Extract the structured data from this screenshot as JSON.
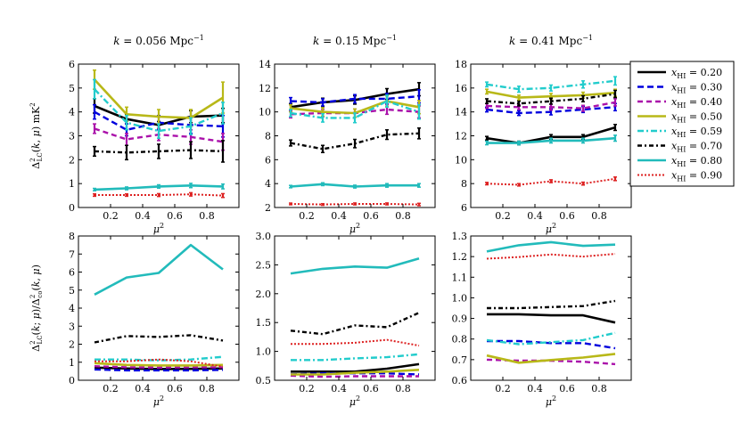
{
  "colors": {
    "0.20": "#000000",
    "0.30": "#0000dd",
    "0.40": "#aa11aa",
    "0.50": "#b8b818",
    "0.59": "#22cccc",
    "0.70": "#000000",
    "0.80": "#22bbbb",
    "0.90": "#dd2222"
  },
  "legend": {
    "placement": "top-right",
    "entries": [
      {
        "key": "0.20",
        "label": "x_HI = 0.20",
        "var": "x",
        "sub": "HI",
        "eq": " = 0.20"
      },
      {
        "key": "0.30",
        "label": "x_HI = 0.30",
        "var": "x",
        "sub": "HI",
        "eq": " = 0.30"
      },
      {
        "key": "0.40",
        "label": "x_HI = 0.40",
        "var": "x",
        "sub": "HI",
        "eq": " = 0.40"
      },
      {
        "key": "0.50",
        "label": "x_HI = 0.50",
        "var": "x",
        "sub": "HI",
        "eq": " = 0.50"
      },
      {
        "key": "0.59",
        "label": "x_HI = 0.59",
        "var": "x",
        "sub": "HI",
        "eq": " = 0.59"
      },
      {
        "key": "0.70",
        "label": "x_HI = 0.70",
        "var": "x",
        "sub": "HI",
        "eq": " = 0.70"
      },
      {
        "key": "0.80",
        "label": "x_HI = 0.80",
        "var": "x",
        "sub": "HI",
        "eq": " = 0.80"
      },
      {
        "key": "0.90",
        "label": "x_HI = 0.90",
        "var": "x",
        "sub": "HI",
        "eq": " = 0.90"
      }
    ]
  },
  "chart_data": [
    {
      "type": "line",
      "title": "k = 0.056 Mpc^-1",
      "title_parts": {
        "k": "k",
        "eq": " = 0.056 Mpc",
        "sup": "−1"
      },
      "xlabel": "μ^2",
      "ylabel": "Δ^2_LC(k,μ) mK^2",
      "xlim": [
        0.0,
        1.0
      ],
      "ylim": [
        0,
        6
      ],
      "xticks": [
        0.2,
        0.4,
        0.6,
        0.8
      ],
      "yticks": [
        0,
        1,
        2,
        3,
        4,
        5,
        6
      ],
      "ytick_labels": [
        "0",
        "1",
        "2",
        "3",
        "4",
        "5",
        "6"
      ],
      "errorbars": true,
      "x": [
        0.1,
        0.3,
        0.5,
        0.7,
        0.9
      ],
      "series": [
        {
          "key": "0.20",
          "values": [
            4.25,
            3.7,
            3.45,
            3.8,
            3.85
          ],
          "err": [
            0.3,
            0.2,
            0.15,
            0.25,
            0.3
          ]
        },
        {
          "key": "0.30",
          "values": [
            4.0,
            3.25,
            3.55,
            3.45,
            3.4
          ],
          "err": [
            0.3,
            0.25,
            0.3,
            0.35,
            0.45
          ]
        },
        {
          "key": "0.40",
          "values": [
            3.3,
            2.85,
            3.05,
            2.95,
            2.75
          ],
          "err": [
            0.2,
            0.25,
            0.25,
            0.3,
            0.35
          ]
        },
        {
          "key": "0.50",
          "values": [
            5.35,
            3.9,
            3.8,
            3.75,
            4.6
          ],
          "err": [
            0.4,
            0.3,
            0.3,
            0.35,
            0.65
          ]
        },
        {
          "key": "0.59",
          "values": [
            4.95,
            3.55,
            3.2,
            3.4,
            3.95
          ],
          "err": [
            0.4,
            0.3,
            0.3,
            0.35,
            0.45
          ]
        },
        {
          "key": "0.70",
          "values": [
            2.35,
            2.3,
            2.35,
            2.4,
            2.35
          ],
          "err": [
            0.2,
            0.3,
            0.3,
            0.35,
            0.45
          ]
        },
        {
          "key": "0.80",
          "values": [
            0.75,
            0.8,
            0.88,
            0.92,
            0.88
          ],
          "err": [
            0.05,
            0.06,
            0.07,
            0.09,
            0.1
          ]
        },
        {
          "key": "0.90",
          "values": [
            0.52,
            0.52,
            0.52,
            0.55,
            0.5
          ],
          "err": [
            0.05,
            0.05,
            0.06,
            0.07,
            0.08
          ]
        }
      ]
    },
    {
      "type": "line",
      "title": "k = 0.15 Mpc^-1",
      "title_parts": {
        "k": "k",
        "eq": " = 0.15 Mpc",
        "sup": "−1"
      },
      "xlabel": "μ^2",
      "ylabel": "",
      "xlim": [
        0.0,
        1.0
      ],
      "ylim": [
        2,
        14
      ],
      "xticks": [
        0.2,
        0.4,
        0.6,
        0.8
      ],
      "yticks": [
        2,
        4,
        6,
        8,
        10,
        12,
        14
      ],
      "ytick_labels": [
        "2",
        "4",
        "6",
        "8",
        "10",
        "12",
        "14"
      ],
      "errorbars": true,
      "x": [
        0.1,
        0.3,
        0.5,
        0.7,
        0.9
      ],
      "series": [
        {
          "key": "0.20",
          "values": [
            10.4,
            10.8,
            11.0,
            11.5,
            11.9
          ],
          "err": [
            0.3,
            0.35,
            0.35,
            0.45,
            0.55
          ]
        },
        {
          "key": "0.30",
          "values": [
            10.9,
            10.8,
            11.1,
            11.1,
            11.3
          ],
          "err": [
            0.3,
            0.3,
            0.35,
            0.45,
            0.55
          ]
        },
        {
          "key": "0.40",
          "values": [
            9.8,
            9.9,
            9.9,
            10.2,
            10.0
          ],
          "err": [
            0.3,
            0.3,
            0.35,
            0.4,
            0.5
          ]
        },
        {
          "key": "0.50",
          "values": [
            10.3,
            10.0,
            9.9,
            10.9,
            10.4
          ],
          "err": [
            0.3,
            0.35,
            0.35,
            0.45,
            0.55
          ]
        },
        {
          "key": "0.59",
          "values": [
            9.9,
            9.5,
            9.5,
            10.9,
            10.0
          ],
          "err": [
            0.3,
            0.35,
            0.4,
            0.5,
            0.6
          ]
        },
        {
          "key": "0.70",
          "values": [
            7.4,
            6.9,
            7.35,
            8.1,
            8.2
          ],
          "err": [
            0.25,
            0.3,
            0.35,
            0.4,
            0.45
          ]
        },
        {
          "key": "0.80",
          "values": [
            3.75,
            3.95,
            3.75,
            3.85,
            3.85
          ],
          "err": [
            0.1,
            0.12,
            0.12,
            0.15,
            0.15
          ]
        },
        {
          "key": "0.90",
          "values": [
            2.3,
            2.25,
            2.3,
            2.3,
            2.25
          ],
          "err": [
            0.07,
            0.07,
            0.08,
            0.08,
            0.1
          ]
        }
      ]
    },
    {
      "type": "line",
      "title": "k = 0.41 Mpc^-1",
      "title_parts": {
        "k": "k",
        "eq": " = 0.41 Mpc",
        "sup": "−1"
      },
      "xlabel": "μ^2",
      "ylabel": "",
      "xlim": [
        0.0,
        1.0
      ],
      "ylim": [
        6,
        18
      ],
      "xticks": [
        0.2,
        0.4,
        0.6,
        0.8
      ],
      "yticks": [
        6,
        8,
        10,
        12,
        14,
        16,
        18
      ],
      "ytick_labels": [
        "6",
        "8",
        "10",
        "12",
        "14",
        "16",
        "18"
      ],
      "errorbars": true,
      "x": [
        0.1,
        0.3,
        0.5,
        0.7,
        0.9
      ],
      "series": [
        {
          "key": "0.20",
          "values": [
            11.8,
            11.4,
            11.9,
            11.9,
            12.7
          ],
          "err": [
            0.15,
            0.15,
            0.2,
            0.2,
            0.25
          ]
        },
        {
          "key": "0.30",
          "values": [
            14.2,
            13.9,
            14.0,
            14.2,
            14.4
          ],
          "err": [
            0.2,
            0.2,
            0.25,
            0.25,
            0.3
          ]
        },
        {
          "key": "0.40",
          "values": [
            14.5,
            14.4,
            14.4,
            14.3,
            14.8
          ],
          "err": [
            0.2,
            0.2,
            0.25,
            0.25,
            0.3
          ]
        },
        {
          "key": "0.50",
          "values": [
            15.7,
            15.2,
            15.3,
            15.4,
            15.6
          ],
          "err": [
            0.2,
            0.2,
            0.25,
            0.25,
            0.3
          ]
        },
        {
          "key": "0.59",
          "values": [
            16.3,
            15.9,
            16.0,
            16.3,
            16.6
          ],
          "err": [
            0.2,
            0.25,
            0.25,
            0.3,
            0.35
          ]
        },
        {
          "key": "0.70",
          "values": [
            14.9,
            14.7,
            14.9,
            15.1,
            15.5
          ],
          "err": [
            0.2,
            0.2,
            0.25,
            0.25,
            0.3
          ]
        },
        {
          "key": "0.80",
          "values": [
            11.4,
            11.4,
            11.6,
            11.6,
            11.8
          ],
          "err": [
            0.15,
            0.15,
            0.2,
            0.2,
            0.25
          ]
        },
        {
          "key": "0.90",
          "values": [
            8.0,
            7.9,
            8.2,
            8.0,
            8.4
          ],
          "err": [
            0.1,
            0.1,
            0.12,
            0.12,
            0.15
          ]
        }
      ]
    },
    {
      "type": "line",
      "title": "",
      "xlabel": "μ^2",
      "ylabel": "Δ^2_LC(k,μ)/Δ^2_co(k,μ)",
      "xlim": [
        0.0,
        1.0
      ],
      "ylim": [
        0,
        8
      ],
      "xticks": [
        0.2,
        0.4,
        0.6,
        0.8
      ],
      "yticks": [
        0,
        1,
        2,
        3,
        4,
        5,
        6,
        7,
        8
      ],
      "ytick_labels": [
        "0",
        "1",
        "2",
        "3",
        "4",
        "5",
        "6",
        "7",
        "8"
      ],
      "errorbars": false,
      "x": [
        0.1,
        0.3,
        0.5,
        0.7,
        0.9
      ],
      "series": [
        {
          "key": "0.20",
          "values": [
            0.7,
            0.65,
            0.62,
            0.63,
            0.65
          ]
        },
        {
          "key": "0.30",
          "values": [
            0.6,
            0.55,
            0.55,
            0.55,
            0.58
          ]
        },
        {
          "key": "0.40",
          "values": [
            0.78,
            0.72,
            0.7,
            0.72,
            0.72
          ]
        },
        {
          "key": "0.50",
          "values": [
            0.95,
            0.85,
            0.82,
            0.82,
            0.85
          ]
        },
        {
          "key": "0.59",
          "values": [
            1.15,
            1.15,
            1.1,
            1.15,
            1.3
          ]
        },
        {
          "key": "0.70",
          "values": [
            2.1,
            2.45,
            2.4,
            2.5,
            2.2
          ]
        },
        {
          "key": "0.80",
          "values": [
            4.75,
            5.7,
            5.95,
            7.5,
            6.15
          ]
        },
        {
          "key": "0.90",
          "values": [
            1.05,
            1.05,
            1.15,
            1.05,
            0.75
          ]
        }
      ]
    },
    {
      "type": "line",
      "title": "",
      "xlabel": "μ^2",
      "ylabel": "",
      "xlim": [
        0.0,
        1.0
      ],
      "ylim": [
        0.5,
        3.0
      ],
      "xticks": [
        0.2,
        0.4,
        0.6,
        0.8
      ],
      "yticks": [
        0.5,
        1.0,
        1.5,
        2.0,
        2.5,
        3.0
      ],
      "ytick_labels": [
        "0.5",
        "1.0",
        "1.5",
        "2.0",
        "2.5",
        "3.0"
      ],
      "errorbars": false,
      "x": [
        0.1,
        0.3,
        0.5,
        0.7,
        0.9
      ],
      "series": [
        {
          "key": "0.20",
          "values": [
            0.65,
            0.65,
            0.65,
            0.7,
            0.78
          ]
        },
        {
          "key": "0.30",
          "values": [
            0.6,
            0.62,
            0.62,
            0.62,
            0.6
          ]
        },
        {
          "key": "0.40",
          "values": [
            0.58,
            0.56,
            0.57,
            0.57,
            0.57
          ]
        },
        {
          "key": "0.50",
          "values": [
            0.6,
            0.6,
            0.63,
            0.65,
            0.68
          ]
        },
        {
          "key": "0.59",
          "values": [
            0.85,
            0.85,
            0.88,
            0.9,
            0.95
          ]
        },
        {
          "key": "0.70",
          "values": [
            1.36,
            1.3,
            1.45,
            1.42,
            1.67
          ]
        },
        {
          "key": "0.80",
          "values": [
            2.35,
            2.43,
            2.47,
            2.45,
            2.61
          ]
        },
        {
          "key": "0.90",
          "values": [
            1.13,
            1.13,
            1.15,
            1.2,
            1.1
          ]
        }
      ]
    },
    {
      "type": "line",
      "title": "",
      "xlabel": "μ^2",
      "ylabel": "",
      "xlim": [
        0.0,
        1.0
      ],
      "ylim": [
        0.6,
        1.3
      ],
      "xticks": [
        0.2,
        0.4,
        0.6,
        0.8
      ],
      "yticks": [
        0.6,
        0.7,
        0.8,
        0.9,
        1.0,
        1.1,
        1.2,
        1.3
      ],
      "ytick_labels": [
        "0.6",
        "0.7",
        "0.8",
        "0.9",
        "1.0",
        "1.1",
        "1.2",
        "1.3"
      ],
      "errorbars": false,
      "x": [
        0.1,
        0.3,
        0.5,
        0.7,
        0.9
      ],
      "series": [
        {
          "key": "0.20",
          "values": [
            0.92,
            0.92,
            0.915,
            0.915,
            0.88
          ]
        },
        {
          "key": "0.30",
          "values": [
            0.79,
            0.79,
            0.78,
            0.78,
            0.755
          ]
        },
        {
          "key": "0.40",
          "values": [
            0.7,
            0.695,
            0.695,
            0.69,
            0.678
          ]
        },
        {
          "key": "0.50",
          "values": [
            0.72,
            0.685,
            0.698,
            0.71,
            0.728
          ]
        },
        {
          "key": "0.59",
          "values": [
            0.795,
            0.775,
            0.785,
            0.795,
            0.83
          ]
        },
        {
          "key": "0.70",
          "values": [
            0.95,
            0.95,
            0.955,
            0.96,
            0.985
          ]
        },
        {
          "key": "0.80",
          "values": [
            1.225,
            1.255,
            1.27,
            1.252,
            1.258
          ]
        },
        {
          "key": "0.90",
          "values": [
            1.19,
            1.198,
            1.21,
            1.2,
            1.213
          ]
        }
      ]
    }
  ]
}
